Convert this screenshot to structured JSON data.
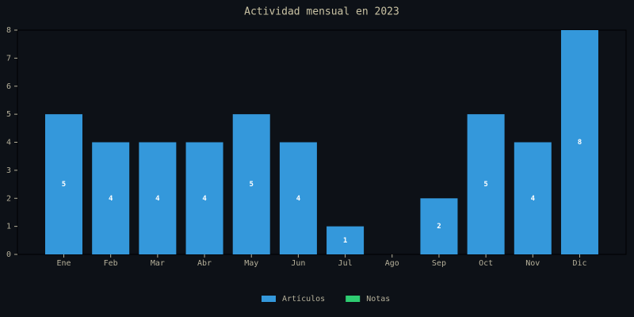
{
  "chart_data": {
    "type": "bar",
    "stacked": true,
    "title": "Actividad mensual en 2023",
    "categories": [
      "Ene",
      "Feb",
      "Mar",
      "Abr",
      "May",
      "Jun",
      "Jul",
      "Ago",
      "Sep",
      "Oct",
      "Nov",
      "Dic"
    ],
    "series": [
      {
        "name": "Artículos",
        "color": "#3498db",
        "values": [
          5,
          4,
          4,
          4,
          5,
          4,
          1,
          0,
          2,
          5,
          4,
          8
        ]
      },
      {
        "name": "Notas",
        "color": "#2ecc71",
        "values": [
          0,
          0,
          0,
          0,
          0,
          0,
          0,
          0,
          0,
          0,
          0,
          0
        ]
      }
    ],
    "ylim": [
      0,
      8
    ],
    "yticks": [
      0,
      1,
      2,
      3,
      4,
      5,
      6,
      7,
      8
    ],
    "grid": false,
    "legend": "bottom"
  }
}
